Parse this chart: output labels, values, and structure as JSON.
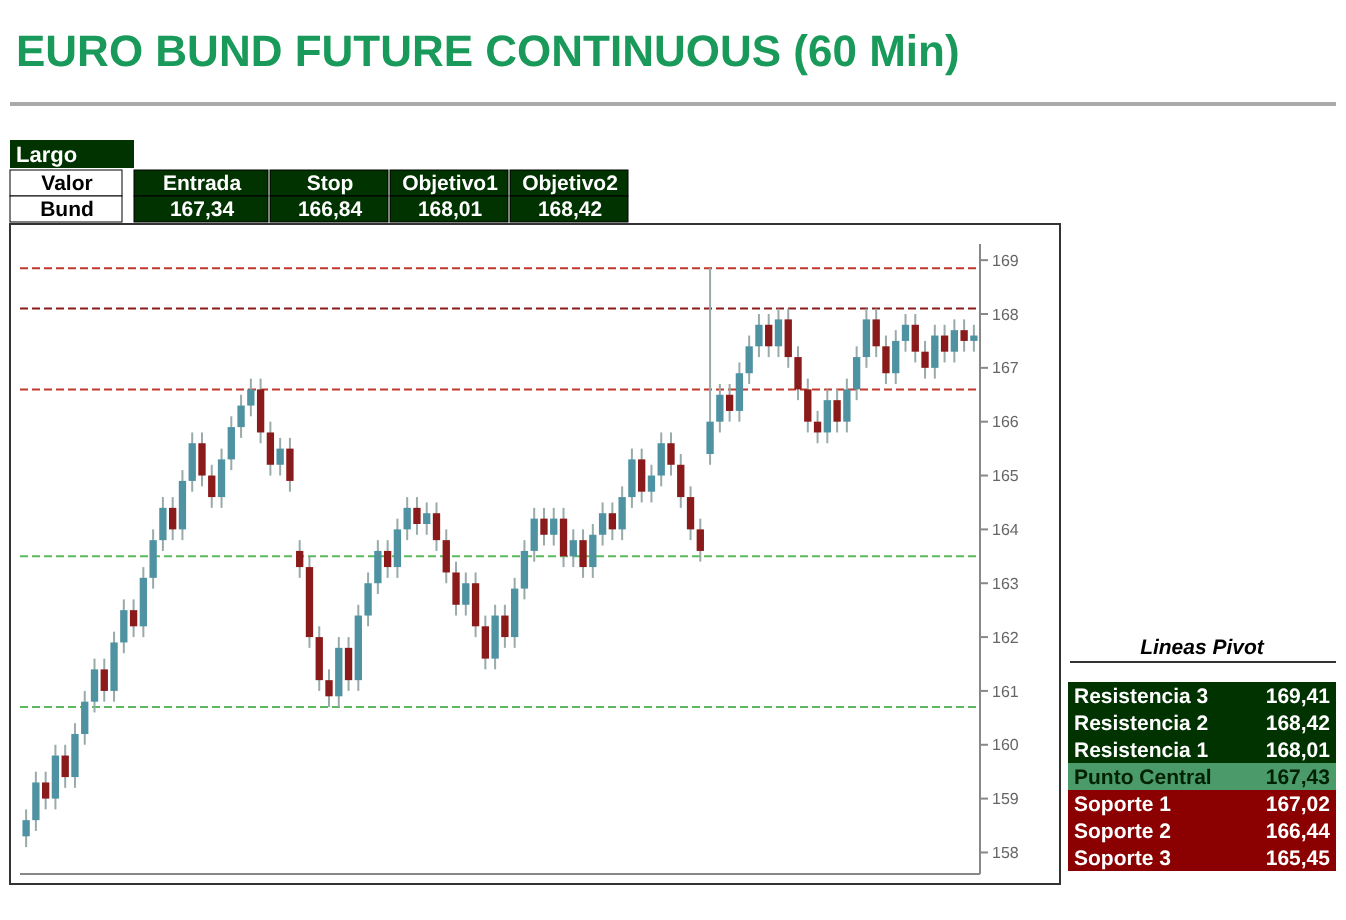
{
  "chart_data": {
    "type": "candlestick",
    "title": "EURO BUND FUTURE CONTINUOUS (60 Min)",
    "categories": [
      null,
      null,
      null,
      null,
      null,
      null,
      null,
      null,
      null,
      null,
      null,
      null,
      null,
      null,
      null,
      null,
      null,
      null,
      null,
      null,
      null,
      null,
      null,
      null,
      null,
      null,
      null,
      null,
      null,
      null,
      null,
      null,
      null,
      null,
      null,
      null,
      null,
      null,
      null,
      null,
      null,
      null,
      null,
      null,
      null,
      null,
      null,
      null,
      null,
      null,
      null,
      null,
      null,
      null,
      null,
      null,
      null,
      null,
      null,
      null,
      null,
      null,
      null,
      null,
      null,
      null,
      null,
      null,
      null,
      null,
      null,
      null,
      null,
      null,
      null,
      null,
      null,
      null,
      null,
      null,
      null,
      null,
      null,
      null,
      null,
      null,
      null,
      null,
      null,
      null,
      null,
      null,
      null,
      null,
      null,
      null,
      null,
      null
    ],
    "ohlc": [
      [
        158.3,
        158.8,
        158.1,
        158.6
      ],
      [
        158.6,
        159.5,
        158.4,
        159.3
      ],
      [
        159.3,
        159.5,
        158.8,
        159.0
      ],
      [
        159.0,
        160.0,
        158.8,
        159.8
      ],
      [
        159.8,
        160.0,
        159.2,
        159.4
      ],
      [
        159.4,
        160.4,
        159.2,
        160.2
      ],
      [
        160.2,
        161.0,
        160.0,
        160.8
      ],
      [
        160.8,
        161.6,
        160.6,
        161.4
      ],
      [
        161.4,
        161.6,
        160.8,
        161.0
      ],
      [
        161.0,
        162.1,
        160.8,
        161.9
      ],
      [
        161.9,
        162.7,
        161.7,
        162.5
      ],
      [
        162.5,
        162.7,
        162.0,
        162.2
      ],
      [
        162.2,
        163.3,
        162.0,
        163.1
      ],
      [
        163.1,
        164.0,
        162.9,
        163.8
      ],
      [
        163.8,
        164.6,
        163.6,
        164.4
      ],
      [
        164.4,
        164.6,
        163.8,
        164.0
      ],
      [
        164.0,
        165.1,
        163.8,
        164.9
      ],
      [
        164.9,
        165.8,
        164.7,
        165.6
      ],
      [
        165.6,
        165.8,
        164.8,
        165.0
      ],
      [
        165.0,
        165.2,
        164.4,
        164.6
      ],
      [
        164.6,
        165.5,
        164.4,
        165.3
      ],
      [
        165.3,
        166.1,
        165.1,
        165.9
      ],
      [
        165.9,
        166.5,
        165.7,
        166.3
      ],
      [
        166.3,
        166.8,
        166.1,
        166.6
      ],
      [
        166.6,
        166.8,
        165.6,
        165.8
      ],
      [
        165.8,
        166.0,
        165.0,
        165.2
      ],
      [
        165.2,
        165.7,
        165.0,
        165.5
      ],
      [
        165.5,
        165.7,
        164.7,
        164.9
      ],
      [
        163.6,
        163.8,
        163.1,
        163.3
      ],
      [
        163.3,
        163.5,
        161.8,
        162.0
      ],
      [
        162.0,
        162.2,
        161.0,
        161.2
      ],
      [
        161.2,
        161.4,
        160.7,
        160.9
      ],
      [
        160.9,
        162.0,
        160.7,
        161.8
      ],
      [
        161.8,
        162.0,
        161.0,
        161.2
      ],
      [
        161.2,
        162.6,
        161.0,
        162.4
      ],
      [
        162.4,
        163.2,
        162.2,
        163.0
      ],
      [
        163.0,
        163.8,
        162.8,
        163.6
      ],
      [
        163.6,
        163.8,
        163.1,
        163.3
      ],
      [
        163.3,
        164.2,
        163.1,
        164.0
      ],
      [
        164.0,
        164.6,
        163.8,
        164.4
      ],
      [
        164.4,
        164.6,
        163.9,
        164.1
      ],
      [
        164.1,
        164.5,
        163.9,
        164.3
      ],
      [
        164.3,
        164.5,
        163.6,
        163.8
      ],
      [
        163.8,
        164.0,
        163.0,
        163.2
      ],
      [
        163.2,
        163.4,
        162.4,
        162.6
      ],
      [
        162.6,
        163.2,
        162.4,
        163.0
      ],
      [
        163.0,
        163.2,
        162.0,
        162.2
      ],
      [
        162.2,
        162.4,
        161.4,
        161.6
      ],
      [
        161.6,
        162.6,
        161.4,
        162.4
      ],
      [
        162.4,
        162.6,
        161.8,
        162.0
      ],
      [
        162.0,
        163.1,
        161.8,
        162.9
      ],
      [
        162.9,
        163.8,
        162.7,
        163.6
      ],
      [
        163.6,
        164.4,
        163.4,
        164.2
      ],
      [
        164.2,
        164.4,
        163.7,
        163.9
      ],
      [
        163.9,
        164.4,
        163.7,
        164.2
      ],
      [
        164.2,
        164.4,
        163.3,
        163.5
      ],
      [
        163.5,
        164.0,
        163.3,
        163.8
      ],
      [
        163.8,
        164.0,
        163.1,
        163.3
      ],
      [
        163.3,
        164.1,
        163.1,
        163.9
      ],
      [
        163.9,
        164.5,
        163.7,
        164.3
      ],
      [
        164.3,
        164.5,
        163.8,
        164.0
      ],
      [
        164.0,
        164.8,
        163.8,
        164.6
      ],
      [
        164.6,
        165.5,
        164.4,
        165.3
      ],
      [
        165.3,
        165.5,
        164.5,
        164.7
      ],
      [
        164.7,
        165.2,
        164.5,
        165.0
      ],
      [
        165.0,
        165.8,
        164.8,
        165.6
      ],
      [
        165.6,
        165.8,
        165.0,
        165.2
      ],
      [
        165.2,
        165.4,
        164.4,
        164.6
      ],
      [
        164.6,
        164.8,
        163.8,
        164.0
      ],
      [
        164.0,
        164.2,
        163.4,
        163.6
      ],
      [
        165.4,
        168.85,
        165.2,
        166.0
      ],
      [
        166.0,
        166.7,
        165.8,
        166.5
      ],
      [
        166.5,
        166.7,
        166.0,
        166.2
      ],
      [
        166.2,
        167.1,
        166.0,
        166.9
      ],
      [
        166.9,
        167.6,
        166.7,
        167.4
      ],
      [
        167.4,
        168.0,
        167.2,
        167.8
      ],
      [
        167.8,
        168.0,
        167.2,
        167.4
      ],
      [
        167.4,
        168.1,
        167.2,
        167.9
      ],
      [
        167.9,
        168.1,
        167.0,
        167.2
      ],
      [
        167.2,
        167.4,
        166.4,
        166.6
      ],
      [
        166.6,
        166.8,
        165.8,
        166.0
      ],
      [
        166.0,
        166.2,
        165.6,
        165.8
      ],
      [
        165.8,
        166.6,
        165.6,
        166.4
      ],
      [
        166.4,
        166.6,
        165.8,
        166.0
      ],
      [
        166.0,
        166.8,
        165.8,
        166.6
      ],
      [
        166.6,
        167.4,
        166.4,
        167.2
      ],
      [
        167.2,
        168.1,
        167.0,
        167.9
      ],
      [
        167.9,
        168.1,
        167.2,
        167.4
      ],
      [
        167.4,
        167.6,
        166.7,
        166.9
      ],
      [
        166.9,
        167.7,
        166.7,
        167.5
      ],
      [
        167.5,
        168.0,
        167.3,
        167.8
      ],
      [
        167.8,
        168.0,
        167.1,
        167.3
      ],
      [
        167.3,
        167.5,
        166.8,
        167.0
      ],
      [
        167.0,
        167.8,
        166.8,
        167.6
      ],
      [
        167.6,
        167.8,
        167.1,
        167.3
      ],
      [
        167.3,
        167.9,
        167.1,
        167.7
      ],
      [
        167.7,
        167.9,
        167.3,
        167.5
      ],
      [
        167.5,
        167.8,
        167.3,
        167.6
      ]
    ],
    "ylim": [
      157.6,
      169.3
    ],
    "yticks": [
      158,
      159,
      160,
      161,
      162,
      163,
      164,
      165,
      166,
      167,
      168,
      169
    ],
    "grid": false,
    "ref_lines": [
      {
        "axis": "y",
        "value": 166.6,
        "color": "#c0392b",
        "line_style": "dashed"
      },
      {
        "axis": "y",
        "value": 168.85,
        "color": "#c0392b",
        "line_style": "dashed"
      },
      {
        "axis": "y",
        "value": 168.1,
        "color": "#8b1a1a",
        "line_style": "dashed"
      },
      {
        "axis": "y",
        "value": 160.7,
        "color": "#5cb85c",
        "line_style": "dashed"
      },
      {
        "axis": "y",
        "value": 163.5,
        "color": "#5cb85c",
        "line_style": "dashed"
      }
    ],
    "annotations": [
      "Largo",
      "Valor",
      "Entrada",
      "Stop",
      "Objetivo1",
      "Objetivo2",
      "Bund",
      "167,34",
      "166,84",
      "168,01",
      "168,42",
      "Lineas Pivot",
      "Resistencia 3",
      "169,41",
      "Resistencia 2",
      "168,42",
      "Resistencia 1",
      "168,01",
      "Punto Central",
      "167,43",
      "Soporte 1",
      "167,02",
      "Soporte 2",
      "166,44",
      "Soporte 3",
      "165,45"
    ]
  }
}
